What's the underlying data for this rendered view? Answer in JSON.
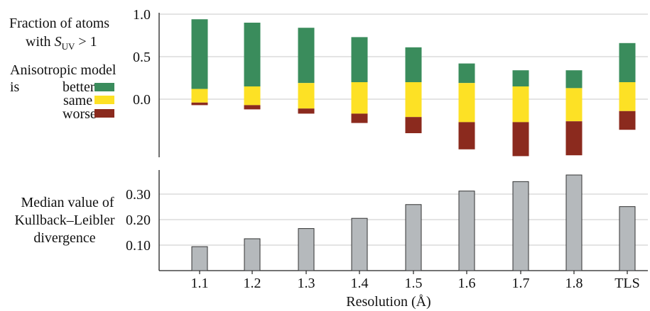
{
  "labels": {
    "top_line1": "Fraction of atoms",
    "top_line2_prefix": "with ",
    "top_S": "S",
    "top_sub": "UV",
    "top_line2_suffix": " > 1",
    "aniso_title": "Anisotropic model",
    "aniso_is": "is",
    "legend_better": "better",
    "legend_same": "same",
    "legend_worse": "worse",
    "bottom_line1": "Median value of",
    "bottom_line2": "Kullback–Leibler",
    "bottom_line3": "divergence",
    "x_axis": "Resolution (Å)"
  },
  "colors": {
    "better": "#3a8c5c",
    "same": "#fde125",
    "worse": "#8b2a1e",
    "kl_bar": "#b5b9bc",
    "grid": "#c8c8c8"
  },
  "chart_data": [
    {
      "type": "bar",
      "stacked": true,
      "categories": [
        "1.1",
        "1.2",
        "1.3",
        "1.4",
        "1.5",
        "1.6",
        "1.7",
        "1.8",
        "TLS"
      ],
      "ylim": [
        -0.65,
        1.0
      ],
      "yticks": [
        1.0,
        0.5,
        0.0
      ],
      "ytick_labels": [
        "1.0",
        "0.5",
        "0.0"
      ],
      "grid": true,
      "series": [
        {
          "name": "better",
          "values": [
            0.82,
            0.75,
            0.65,
            0.53,
            0.41,
            0.23,
            0.19,
            0.21,
            0.46
          ]
        },
        {
          "name": "same",
          "values": [
            0.16,
            0.22,
            0.3,
            0.37,
            0.41,
            0.46,
            0.42,
            0.39,
            0.34
          ]
        },
        {
          "name": "worse",
          "values": [
            0.03,
            0.05,
            0.06,
            0.11,
            0.19,
            0.32,
            0.4,
            0.4,
            0.22
          ]
        }
      ],
      "same_lower_bound": [
        -0.04,
        -0.07,
        -0.11,
        -0.17,
        -0.21,
        -0.27,
        -0.27,
        -0.26,
        -0.14
      ]
    },
    {
      "type": "bar",
      "categories": [
        "1.1",
        "1.2",
        "1.3",
        "1.4",
        "1.5",
        "1.6",
        "1.7",
        "1.8",
        "TLS"
      ],
      "values": [
        0.094,
        0.125,
        0.165,
        0.205,
        0.259,
        0.312,
        0.349,
        0.375,
        0.251
      ],
      "ylim": [
        0.0,
        0.38
      ],
      "yticks": [
        0.1,
        0.2,
        0.3
      ],
      "ytick_labels": [
        "0.10",
        "0.20",
        "0.30"
      ],
      "grid": true
    }
  ]
}
